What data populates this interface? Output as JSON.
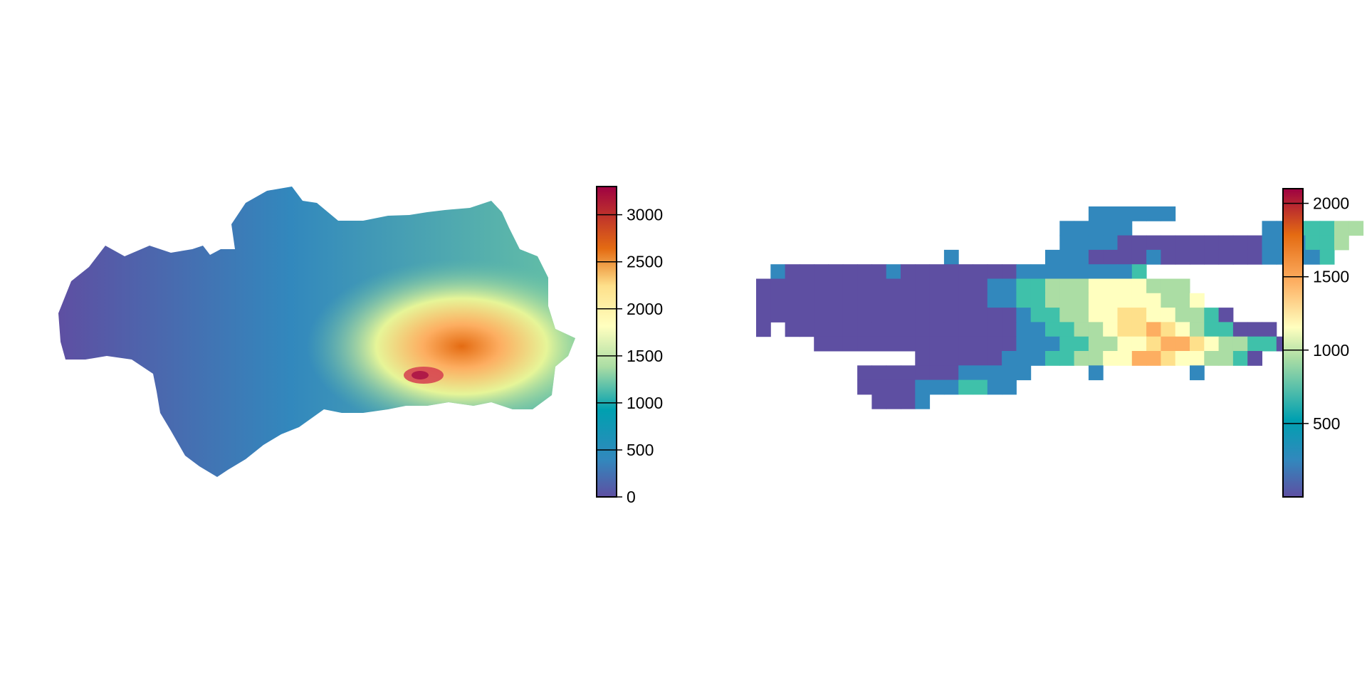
{
  "palette": [
    "#5e4fa2",
    "#3288bd",
    "#00a0b0",
    "#3fc1aa",
    "#66c2a5",
    "#abdda4",
    "#e6f598",
    "#ffffbf",
    "#fee08b",
    "#fdae61",
    "#f46d43",
    "#e46b12",
    "#d53e4f",
    "#9e0142"
  ],
  "panels": [
    {
      "name": "elevation-raster",
      "type": "continuous-raster",
      "legend": {
        "min": 0,
        "max": 3300,
        "ticks": [
          {
            "value": 0,
            "label": "0"
          },
          {
            "value": 500,
            "label": "500"
          },
          {
            "value": 1000,
            "label": "1000"
          },
          {
            "value": 1500,
            "label": "1500"
          },
          {
            "value": 2000,
            "label": "2000"
          },
          {
            "value": 2500,
            "label": "2500"
          },
          {
            "value": 3000,
            "label": "3000"
          }
        ]
      }
    },
    {
      "name": "aggregated-raster",
      "type": "aggregated-grid",
      "legend": {
        "min": 0,
        "max": 2100,
        "ticks": [
          {
            "value": 500,
            "label": "500"
          },
          {
            "value": 1000,
            "label": "1000"
          },
          {
            "value": 1500,
            "label": "1500"
          },
          {
            "value": 2000,
            "label": "2000"
          }
        ]
      },
      "grid": {
        "start_col": 0,
        "rows": [
          "______111111__________________",
          "___________11111_________1122233_________",
          "___________11110000000000111223__",
          "___1______11100001000000011112_",
          "_10000000100000000111111112",
          "000000000000000011223334444333",
          "0000000000000000112233344444334",
          "000000000000000000122334455443320",
          "0_0000000000000000112233455654322000",
          "____000000000000001112233445665433220",
          "___________000000111223344665443320",
          "_______000000011111____1______1",
          "_______00001112211",
          "________0001"
        ]
      }
    }
  ]
}
